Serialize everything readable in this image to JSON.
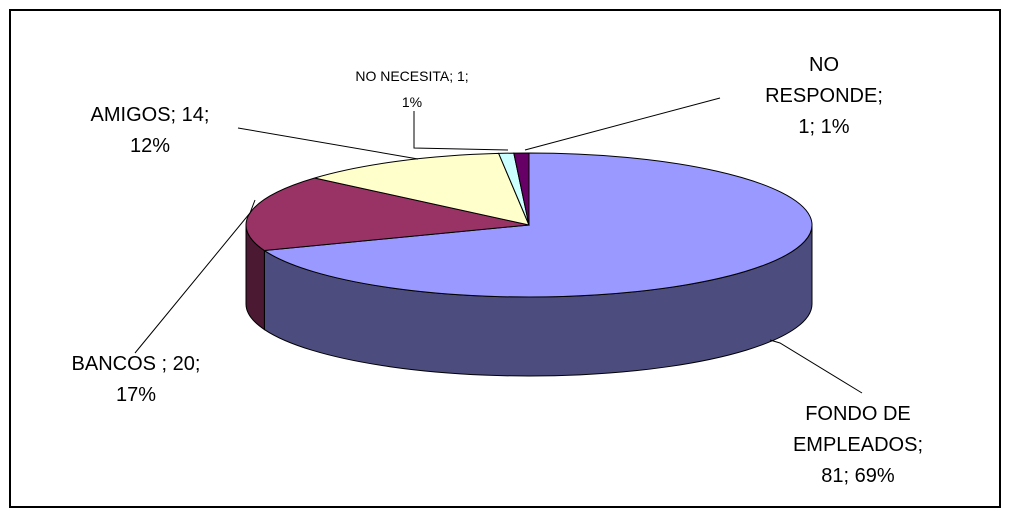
{
  "chart_data": {
    "type": "pie",
    "title": "",
    "slices": [
      {
        "name": "FONDO DE EMPLEADOS",
        "value": 81,
        "percent": "69%",
        "label_lines": [
          "FONDO DE",
          "EMPLEADOS;",
          "81; 69%"
        ],
        "color_top": "#9999ff",
        "color_side": "#4c4c7f"
      },
      {
        "name": "BANCOS",
        "value": 20,
        "percent": "17%",
        "label_lines": [
          "BANCOS ; 20;",
          "17%"
        ],
        "color_top": "#993366",
        "color_side": "#4c1933"
      },
      {
        "name": "AMIGOS",
        "value": 14,
        "percent": "12%",
        "label_lines": [
          "AMIGOS; 14;",
          "12%"
        ],
        "color_top": "#ffffcc",
        "color_side": "#7f7f66"
      },
      {
        "name": "NO NECESITA",
        "value": 1,
        "percent": "1%",
        "label_lines": [
          "NO NECESITA; 1;",
          "1%"
        ],
        "color_top": "#ccffff",
        "color_side": "#667f7f"
      },
      {
        "name": "NO RESPONDE",
        "value": 1,
        "percent": "1%",
        "label_lines": [
          "NO",
          "RESPONDE;",
          "1; 1%"
        ],
        "color_top": "#660066",
        "color_side": "#330033"
      }
    ]
  }
}
